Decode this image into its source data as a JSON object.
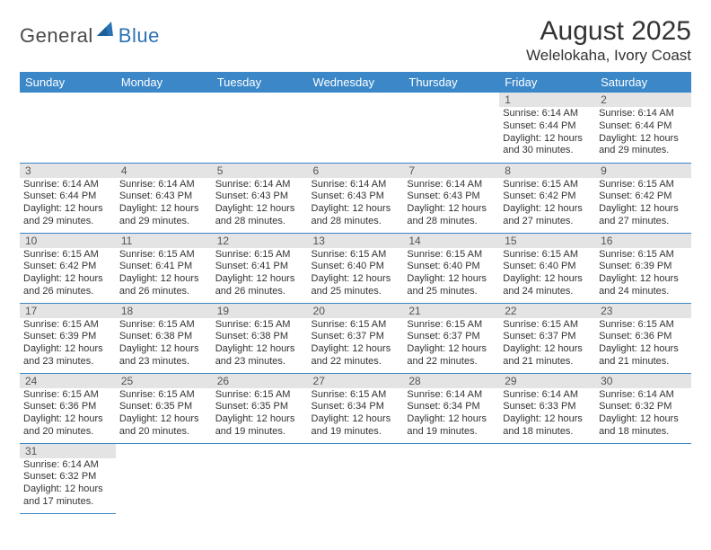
{
  "logo": {
    "word1": "General",
    "word2": "Blue",
    "accent_color": "#2a72b5"
  },
  "title": "August 2025",
  "location": "Welelokaha, Ivory Coast",
  "header_bg": "#3b87c8",
  "daynum_bg": "#e4e4e4",
  "weekdays": [
    "Sunday",
    "Monday",
    "Tuesday",
    "Wednesday",
    "Thursday",
    "Friday",
    "Saturday"
  ],
  "weeks": [
    [
      null,
      null,
      null,
      null,
      null,
      {
        "n": "1",
        "sr": "Sunrise: 6:14 AM",
        "ss": "Sunset: 6:44 PM",
        "d1": "Daylight: 12 hours",
        "d2": "and 30 minutes."
      },
      {
        "n": "2",
        "sr": "Sunrise: 6:14 AM",
        "ss": "Sunset: 6:44 PM",
        "d1": "Daylight: 12 hours",
        "d2": "and 29 minutes."
      }
    ],
    [
      {
        "n": "3",
        "sr": "Sunrise: 6:14 AM",
        "ss": "Sunset: 6:44 PM",
        "d1": "Daylight: 12 hours",
        "d2": "and 29 minutes."
      },
      {
        "n": "4",
        "sr": "Sunrise: 6:14 AM",
        "ss": "Sunset: 6:43 PM",
        "d1": "Daylight: 12 hours",
        "d2": "and 29 minutes."
      },
      {
        "n": "5",
        "sr": "Sunrise: 6:14 AM",
        "ss": "Sunset: 6:43 PM",
        "d1": "Daylight: 12 hours",
        "d2": "and 28 minutes."
      },
      {
        "n": "6",
        "sr": "Sunrise: 6:14 AM",
        "ss": "Sunset: 6:43 PM",
        "d1": "Daylight: 12 hours",
        "d2": "and 28 minutes."
      },
      {
        "n": "7",
        "sr": "Sunrise: 6:14 AM",
        "ss": "Sunset: 6:43 PM",
        "d1": "Daylight: 12 hours",
        "d2": "and 28 minutes."
      },
      {
        "n": "8",
        "sr": "Sunrise: 6:15 AM",
        "ss": "Sunset: 6:42 PM",
        "d1": "Daylight: 12 hours",
        "d2": "and 27 minutes."
      },
      {
        "n": "9",
        "sr": "Sunrise: 6:15 AM",
        "ss": "Sunset: 6:42 PM",
        "d1": "Daylight: 12 hours",
        "d2": "and 27 minutes."
      }
    ],
    [
      {
        "n": "10",
        "sr": "Sunrise: 6:15 AM",
        "ss": "Sunset: 6:42 PM",
        "d1": "Daylight: 12 hours",
        "d2": "and 26 minutes."
      },
      {
        "n": "11",
        "sr": "Sunrise: 6:15 AM",
        "ss": "Sunset: 6:41 PM",
        "d1": "Daylight: 12 hours",
        "d2": "and 26 minutes."
      },
      {
        "n": "12",
        "sr": "Sunrise: 6:15 AM",
        "ss": "Sunset: 6:41 PM",
        "d1": "Daylight: 12 hours",
        "d2": "and 26 minutes."
      },
      {
        "n": "13",
        "sr": "Sunrise: 6:15 AM",
        "ss": "Sunset: 6:40 PM",
        "d1": "Daylight: 12 hours",
        "d2": "and 25 minutes."
      },
      {
        "n": "14",
        "sr": "Sunrise: 6:15 AM",
        "ss": "Sunset: 6:40 PM",
        "d1": "Daylight: 12 hours",
        "d2": "and 25 minutes."
      },
      {
        "n": "15",
        "sr": "Sunrise: 6:15 AM",
        "ss": "Sunset: 6:40 PM",
        "d1": "Daylight: 12 hours",
        "d2": "and 24 minutes."
      },
      {
        "n": "16",
        "sr": "Sunrise: 6:15 AM",
        "ss": "Sunset: 6:39 PM",
        "d1": "Daylight: 12 hours",
        "d2": "and 24 minutes."
      }
    ],
    [
      {
        "n": "17",
        "sr": "Sunrise: 6:15 AM",
        "ss": "Sunset: 6:39 PM",
        "d1": "Daylight: 12 hours",
        "d2": "and 23 minutes."
      },
      {
        "n": "18",
        "sr": "Sunrise: 6:15 AM",
        "ss": "Sunset: 6:38 PM",
        "d1": "Daylight: 12 hours",
        "d2": "and 23 minutes."
      },
      {
        "n": "19",
        "sr": "Sunrise: 6:15 AM",
        "ss": "Sunset: 6:38 PM",
        "d1": "Daylight: 12 hours",
        "d2": "and 23 minutes."
      },
      {
        "n": "20",
        "sr": "Sunrise: 6:15 AM",
        "ss": "Sunset: 6:37 PM",
        "d1": "Daylight: 12 hours",
        "d2": "and 22 minutes."
      },
      {
        "n": "21",
        "sr": "Sunrise: 6:15 AM",
        "ss": "Sunset: 6:37 PM",
        "d1": "Daylight: 12 hours",
        "d2": "and 22 minutes."
      },
      {
        "n": "22",
        "sr": "Sunrise: 6:15 AM",
        "ss": "Sunset: 6:37 PM",
        "d1": "Daylight: 12 hours",
        "d2": "and 21 minutes."
      },
      {
        "n": "23",
        "sr": "Sunrise: 6:15 AM",
        "ss": "Sunset: 6:36 PM",
        "d1": "Daylight: 12 hours",
        "d2": "and 21 minutes."
      }
    ],
    [
      {
        "n": "24",
        "sr": "Sunrise: 6:15 AM",
        "ss": "Sunset: 6:36 PM",
        "d1": "Daylight: 12 hours",
        "d2": "and 20 minutes."
      },
      {
        "n": "25",
        "sr": "Sunrise: 6:15 AM",
        "ss": "Sunset: 6:35 PM",
        "d1": "Daylight: 12 hours",
        "d2": "and 20 minutes."
      },
      {
        "n": "26",
        "sr": "Sunrise: 6:15 AM",
        "ss": "Sunset: 6:35 PM",
        "d1": "Daylight: 12 hours",
        "d2": "and 19 minutes."
      },
      {
        "n": "27",
        "sr": "Sunrise: 6:15 AM",
        "ss": "Sunset: 6:34 PM",
        "d1": "Daylight: 12 hours",
        "d2": "and 19 minutes."
      },
      {
        "n": "28",
        "sr": "Sunrise: 6:14 AM",
        "ss": "Sunset: 6:34 PM",
        "d1": "Daylight: 12 hours",
        "d2": "and 19 minutes."
      },
      {
        "n": "29",
        "sr": "Sunrise: 6:14 AM",
        "ss": "Sunset: 6:33 PM",
        "d1": "Daylight: 12 hours",
        "d2": "and 18 minutes."
      },
      {
        "n": "30",
        "sr": "Sunrise: 6:14 AM",
        "ss": "Sunset: 6:32 PM",
        "d1": "Daylight: 12 hours",
        "d2": "and 18 minutes."
      }
    ],
    [
      {
        "n": "31",
        "sr": "Sunrise: 6:14 AM",
        "ss": "Sunset: 6:32 PM",
        "d1": "Daylight: 12 hours",
        "d2": "and 17 minutes."
      },
      null,
      null,
      null,
      null,
      null,
      null
    ]
  ]
}
